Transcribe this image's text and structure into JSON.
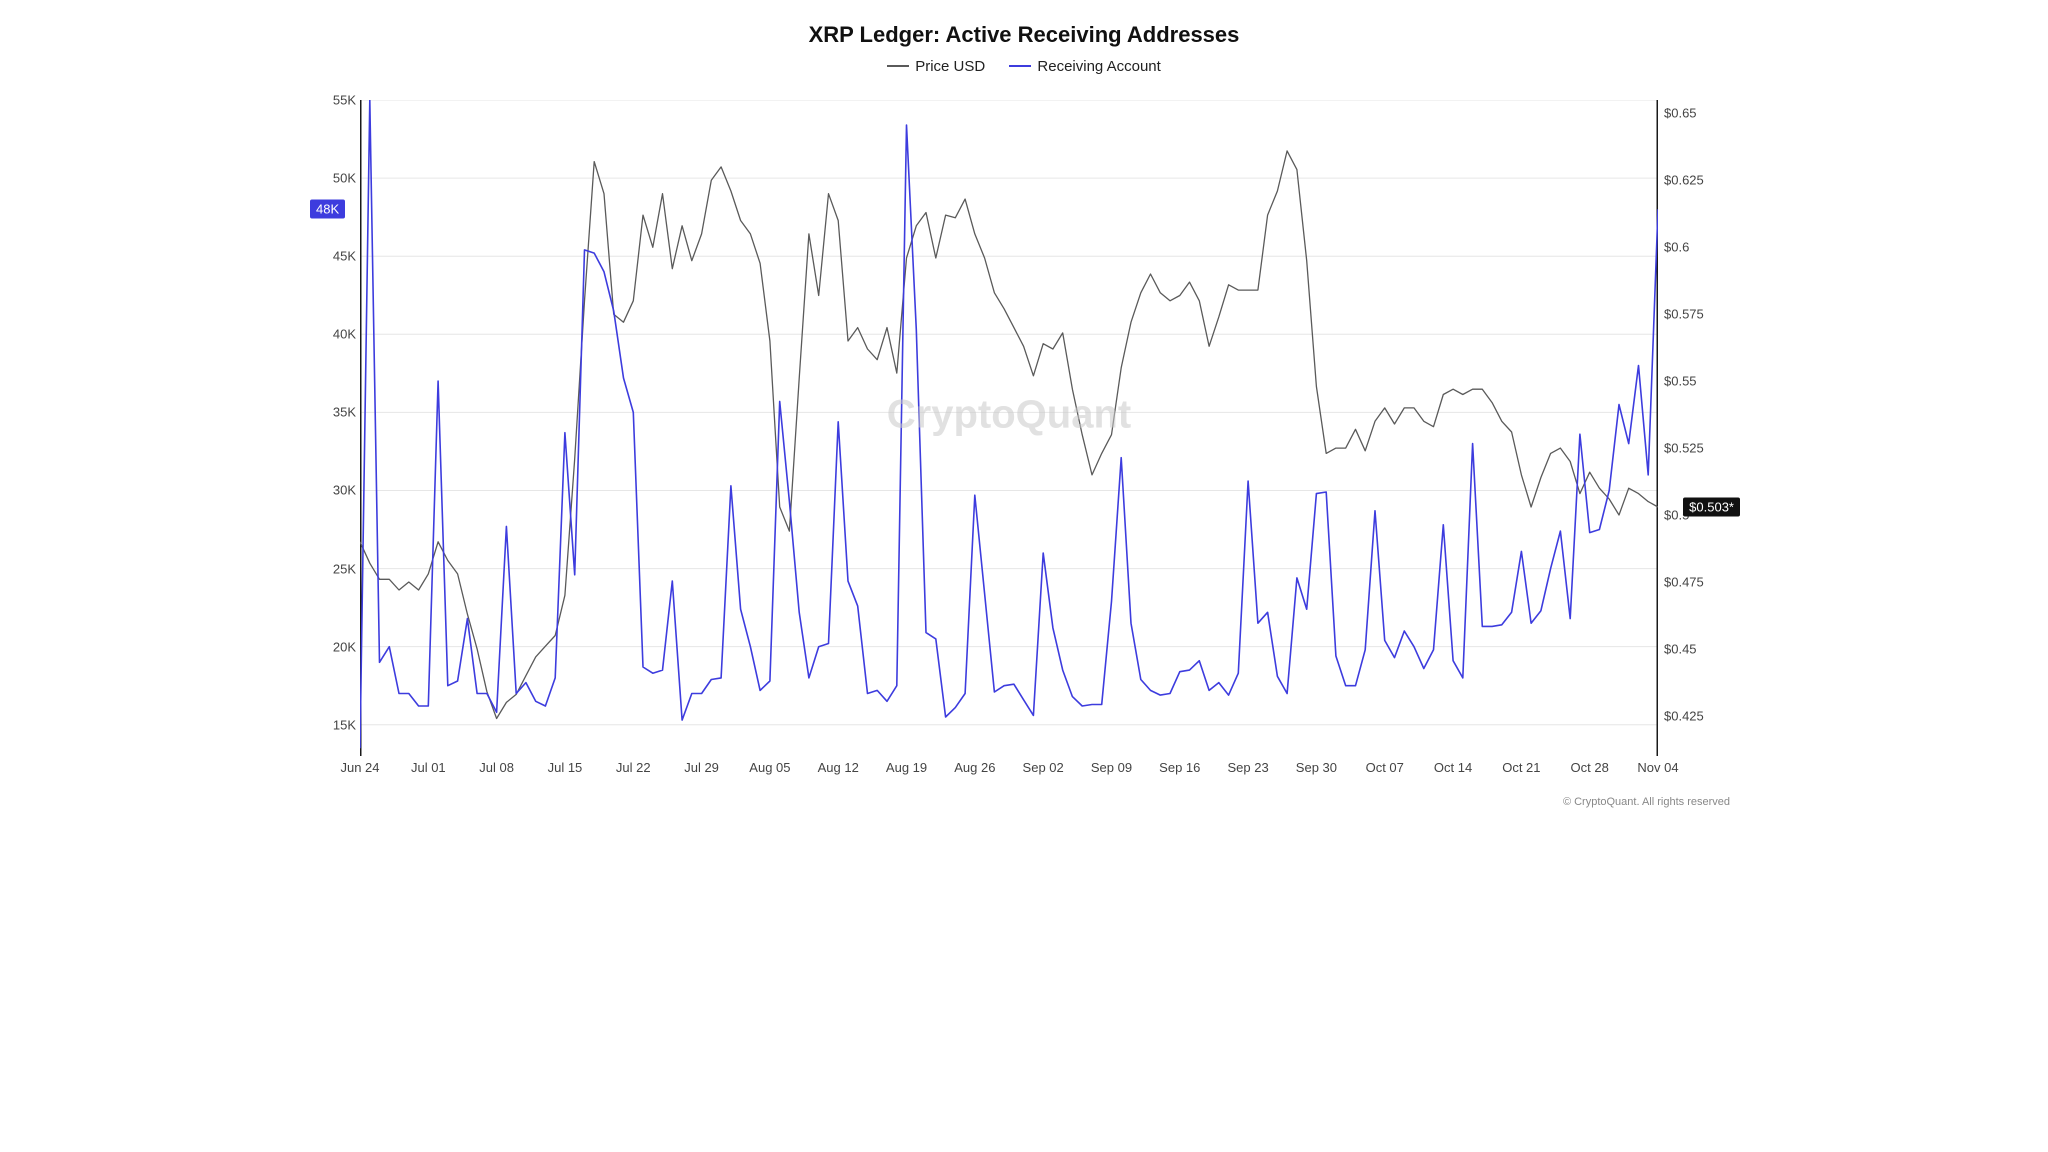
{
  "chart": {
    "type": "line",
    "title": "XRP Ledger: Active Receiving Addresses",
    "title_fontsize": 22,
    "legend_fontsize": 15,
    "axis_label_fontsize": 13,
    "background_color": "#ffffff",
    "grid_color": "#e6e6e6",
    "axis_color": "#1a1a1a",
    "watermark_text": "CryptoQuant",
    "watermark_fontsize": 40,
    "copyright_text": "© CryptoQuant. All rights reserved",
    "copyright_fontsize": 11,
    "series": [
      {
        "key": "price",
        "label": "Price USD",
        "color": "#5a5a5a",
        "axis": "right",
        "line_width": 1.3
      },
      {
        "key": "receiving",
        "label": "Receiving Account",
        "color": "#3d3cde",
        "axis": "left",
        "line_width": 1.6
      }
    ],
    "y_left": {
      "min": 13000,
      "max": 55000,
      "ticks": [
        15000,
        20000,
        25000,
        30000,
        35000,
        40000,
        45000,
        50000,
        55000
      ],
      "tick_labels": [
        "15K",
        "20K",
        "25K",
        "30K",
        "35K",
        "40K",
        "45K",
        "50K",
        "55K"
      ]
    },
    "y_right": {
      "min": 0.41,
      "max": 0.655,
      "ticks": [
        0.425,
        0.45,
        0.475,
        0.5,
        0.525,
        0.55,
        0.575,
        0.6,
        0.625,
        0.65
      ],
      "tick_labels": [
        "$0.425",
        "$0.45",
        "$0.475",
        "$0.5",
        "$0.525",
        "$0.55",
        "$0.575",
        "$0.6",
        "$0.625",
        "$0.65"
      ]
    },
    "x": {
      "min": 0,
      "max": 133,
      "ticks": [
        0,
        7,
        14,
        21,
        28,
        35,
        42,
        49,
        56,
        63,
        70,
        77,
        84,
        91,
        98,
        105,
        112,
        119,
        126,
        133
      ],
      "tick_labels": [
        "Jun 24",
        "Jul 01",
        "Jul 08",
        "Jul 15",
        "Jul 22",
        "Jul 29",
        "Aug 05",
        "Aug 12",
        "Aug 19",
        "Aug 26",
        "Sep 02",
        "Sep 09",
        "Sep 16",
        "Sep 23",
        "Sep 30",
        "Oct 07",
        "Oct 14",
        "Oct 21",
        "Oct 28",
        "Nov 04"
      ]
    },
    "current_left": {
      "value": 48000,
      "label": "48K",
      "bg": "#3d3cde"
    },
    "current_right": {
      "value": 0.503,
      "label": "$0.503*",
      "bg": "#111111"
    },
    "data": {
      "price": [
        0.49,
        0.482,
        0.476,
        0.476,
        0.472,
        0.475,
        0.472,
        0.478,
        0.49,
        0.483,
        0.478,
        0.463,
        0.45,
        0.434,
        0.424,
        0.43,
        0.433,
        0.44,
        0.447,
        0.451,
        0.455,
        0.47,
        0.521,
        0.58,
        0.632,
        0.62,
        0.575,
        0.572,
        0.58,
        0.612,
        0.6,
        0.62,
        0.592,
        0.608,
        0.595,
        0.605,
        0.625,
        0.63,
        0.621,
        0.61,
        0.605,
        0.594,
        0.565,
        0.503,
        0.494,
        0.551,
        0.605,
        0.582,
        0.62,
        0.61,
        0.565,
        0.57,
        0.562,
        0.558,
        0.57,
        0.553,
        0.596,
        0.608,
        0.613,
        0.596,
        0.612,
        0.611,
        0.618,
        0.605,
        0.596,
        0.583,
        0.577,
        0.57,
        0.563,
        0.552,
        0.564,
        0.562,
        0.568,
        0.547,
        0.53,
        0.515,
        0.523,
        0.53,
        0.555,
        0.572,
        0.583,
        0.59,
        0.583,
        0.58,
        0.582,
        0.587,
        0.58,
        0.563,
        0.574,
        0.586,
        0.584,
        0.584,
        0.584,
        0.612,
        0.621,
        0.636,
        0.629,
        0.595,
        0.548,
        0.523,
        0.525,
        0.525,
        0.532,
        0.524,
        0.535,
        0.54,
        0.534,
        0.54,
        0.54,
        0.535,
        0.533,
        0.545,
        0.547,
        0.545,
        0.547,
        0.547,
        0.542,
        0.535,
        0.531,
        0.515,
        0.503,
        0.514,
        0.523,
        0.525,
        0.52,
        0.508,
        0.516,
        0.51,
        0.506,
        0.5,
        0.51,
        0.508,
        0.505,
        0.503
      ],
      "receiving": [
        13500,
        55000,
        19000,
        20000,
        17000,
        17000,
        16200,
        16200,
        37000,
        17500,
        17800,
        21800,
        17000,
        17000,
        15800,
        27700,
        17000,
        17700,
        16500,
        16200,
        18000,
        33700,
        24600,
        45400,
        45200,
        44000,
        41500,
        37200,
        35000,
        18700,
        18300,
        18500,
        24200,
        15300,
        17000,
        17000,
        17900,
        18000,
        30300,
        22400,
        20000,
        17200,
        17800,
        35700,
        29300,
        22200,
        18000,
        20000,
        20200,
        34400,
        24200,
        22600,
        17000,
        17200,
        16500,
        17500,
        53400,
        40300,
        20900,
        20500,
        15500,
        16100,
        17000,
        29700,
        23400,
        17100,
        17500,
        17600,
        16600,
        15600,
        26000,
        21200,
        18500,
        16800,
        16200,
        16300,
        16300,
        22900,
        32100,
        21500,
        17900,
        17200,
        16900,
        17000,
        18400,
        18500,
        19100,
        17200,
        17700,
        16900,
        18300,
        30600,
        21500,
        22200,
        18100,
        17000,
        24400,
        22400,
        29800,
        29900,
        19400,
        17500,
        17500,
        19800,
        28700,
        20400,
        19300,
        21000,
        20000,
        18600,
        19800,
        27800,
        19100,
        18000,
        33000,
        21300,
        21300,
        21400,
        22200,
        26100,
        21500,
        22300,
        25000,
        27400,
        21800,
        33600,
        27300,
        27500,
        30000,
        35500,
        33000,
        38000,
        31000,
        48000
      ]
    }
  }
}
